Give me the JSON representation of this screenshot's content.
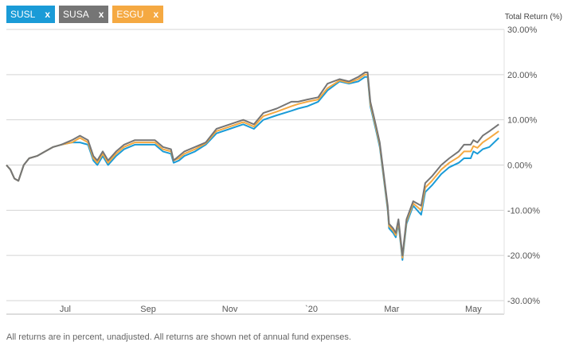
{
  "legend_tags": [
    {
      "label": "SUSL",
      "close": "x",
      "color": "#1a9bd7"
    },
    {
      "label": "SUSA",
      "close": "x",
      "color": "#757575"
    },
    {
      "label": "ESGU",
      "close": "x",
      "color": "#f5a942"
    }
  ],
  "chart_data": {
    "type": "line",
    "ylabel": "Total Return (%)",
    "xlabel": "",
    "ylim": [
      -30,
      30
    ],
    "y_ticks": [
      "30.00%",
      "20.00%",
      "10.00%",
      "0.00%",
      "-10.00%",
      "-20.00%",
      "-30.00%"
    ],
    "x_ticks": [
      "Jul",
      "Sep",
      "Nov",
      "`20",
      "Mar",
      "May"
    ],
    "grid": true,
    "x": [
      "2019-06-01",
      "2019-06-04",
      "2019-06-07",
      "2019-06-10",
      "2019-06-14",
      "2019-06-18",
      "2019-06-24",
      "2019-06-30",
      "2019-07-06",
      "2019-07-12",
      "2019-07-20",
      "2019-07-26",
      "2019-08-01",
      "2019-08-05",
      "2019-08-08",
      "2019-08-12",
      "2019-08-16",
      "2019-08-22",
      "2019-08-28",
      "2019-09-05",
      "2019-09-12",
      "2019-09-20",
      "2019-09-26",
      "2019-10-02",
      "2019-10-04",
      "2019-10-08",
      "2019-10-12",
      "2019-10-20",
      "2019-10-28",
      "2019-11-05",
      "2019-11-15",
      "2019-11-25",
      "2019-12-03",
      "2019-12-10",
      "2019-12-20",
      "2019-12-31",
      "2020-01-05",
      "2020-01-12",
      "2020-01-20",
      "2020-01-27",
      "2020-02-05",
      "2020-02-12",
      "2020-02-19",
      "2020-02-24",
      "2020-02-26",
      "2020-02-28",
      "2020-03-03",
      "2020-03-06",
      "2020-03-09",
      "2020-03-12",
      "2020-03-13",
      "2020-03-16",
      "2020-03-18",
      "2020-03-20",
      "2020-03-23",
      "2020-03-26",
      "2020-03-31",
      "2020-04-06",
      "2020-04-09",
      "2020-04-14",
      "2020-04-21",
      "2020-04-27",
      "2020-05-04",
      "2020-05-08",
      "2020-05-13",
      "2020-05-15",
      "2020-05-18",
      "2020-05-22",
      "2020-05-27",
      "2020-06-03"
    ],
    "series": [
      {
        "name": "SUSL",
        "color": "#1a9bd7",
        "values": [
          0,
          -1,
          -3,
          -3.5,
          0,
          1.5,
          2,
          3,
          4,
          4.5,
          5,
          5,
          4.5,
          1,
          0,
          2,
          0,
          2,
          3.5,
          4.5,
          4.5,
          4.5,
          3,
          2.5,
          0.5,
          1,
          2,
          3,
          4.5,
          7,
          8,
          9,
          8,
          10,
          11,
          12,
          12.5,
          13,
          14,
          16.5,
          18.5,
          18,
          18.5,
          19.5,
          19.5,
          13,
          8,
          4,
          -3,
          -10,
          -14,
          -15,
          -16,
          -13,
          -21,
          -13,
          -9,
          -11,
          -6,
          -4.5,
          -2,
          -0.5,
          0.5,
          1.5,
          1.5,
          3,
          2.5,
          3.5,
          4,
          6
        ]
      },
      {
        "name": "SUSA",
        "color": "#757575",
        "values": [
          0,
          -1,
          -3,
          -3.5,
          0,
          1.5,
          2,
          3,
          4,
          4.5,
          5.5,
          6.5,
          5.5,
          2,
          1,
          3,
          1,
          3,
          4.5,
          5.5,
          5.5,
          5.5,
          4,
          3.5,
          1,
          2,
          3,
          4,
          5,
          8,
          9,
          10,
          9,
          11.5,
          12.5,
          14,
          14,
          14.5,
          15,
          18,
          19,
          18.5,
          19.5,
          20.5,
          20.5,
          14,
          9,
          5,
          -2,
          -9,
          -13,
          -14,
          -15,
          -12,
          -20,
          -12,
          -8,
          -9,
          -4,
          -2.5,
          0,
          1.5,
          3,
          4.5,
          4.5,
          5.5,
          5,
          6.5,
          7.5,
          9
        ]
      },
      {
        "name": "ESGU",
        "color": "#f5a942",
        "values": [
          0,
          -1,
          -3,
          -3.5,
          0,
          1.5,
          2,
          3,
          4,
          4.5,
          5,
          6,
          5,
          1.5,
          0.5,
          2.5,
          0.5,
          2.5,
          4,
          5,
          5,
          5,
          3.5,
          3,
          1,
          1.5,
          2.5,
          3.5,
          4.8,
          7.5,
          8.5,
          9.5,
          8.5,
          10.8,
          11.8,
          13,
          13.5,
          14,
          14.5,
          17,
          18.7,
          18.2,
          19,
          20,
          20,
          13.5,
          8.5,
          4.5,
          -2.5,
          -9.5,
          -13.5,
          -14.5,
          -15.5,
          -12.5,
          -20.5,
          -12.5,
          -8.5,
          -10,
          -5,
          -3.5,
          -1,
          0.5,
          1.8,
          3,
          3,
          4.2,
          3.8,
          5,
          6,
          7.5
        ]
      }
    ]
  },
  "footnote": "All returns are in percent, unadjusted. All returns are shown net of annual fund expenses."
}
